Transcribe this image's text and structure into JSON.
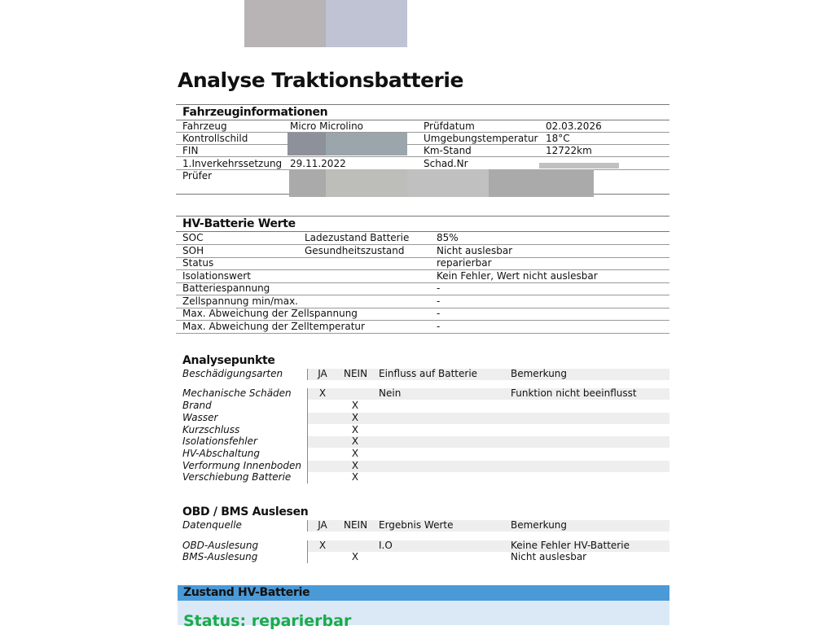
{
  "title": "Analyse Traktionsbatterie",
  "vehicle": {
    "heading": "Fahrzeuginformationen",
    "rows": [
      {
        "l1": "Fahrzeug",
        "v1": "Micro Microlino",
        "l2": "Prüfdatum",
        "v2": "02.03.2026"
      },
      {
        "l1": "Kontrollschild",
        "v1": "",
        "l2": "Umgebungstemperatur",
        "v2": "18°C"
      },
      {
        "l1": "FIN",
        "v1": "",
        "l2": "Km-Stand",
        "v2": "12722km"
      },
      {
        "l1": "1.Inverkehrssetzung",
        "v1": "29.11.2022",
        "l2": "Schad.Nr",
        "v2": ""
      },
      {
        "l1": "Prüfer",
        "v1": "",
        "l2": "",
        "v2": ""
      }
    ]
  },
  "battery": {
    "heading": "HV-Batterie Werte",
    "rows": [
      {
        "k": "SOC",
        "d": "Ladezustand Batterie",
        "v": "85%"
      },
      {
        "k": "SOH",
        "d": "Gesundheitszustand",
        "v": "Nicht auslesbar"
      },
      {
        "k": "Status",
        "d": "",
        "v": "reparierbar"
      },
      {
        "k": "Isolationswert",
        "d": "",
        "v": "Kein Fehler, Wert nicht auslesbar"
      },
      {
        "k": "Batteriespannung",
        "d": "",
        "v": "-"
      },
      {
        "k": "Zellspannung min/max.",
        "d": "",
        "v": "-"
      },
      {
        "k": "Max. Abweichung der Zellspannung",
        "d": "",
        "v": "-"
      },
      {
        "k": "Max. Abweichung der Zelltemperatur",
        "d": "",
        "v": "-"
      }
    ]
  },
  "analysis": {
    "heading": "Analysepunkte",
    "header": {
      "name": "Beschädigungsarten",
      "ja": "JA",
      "nein": "NEIN",
      "c3": "Einfluss auf Batterie",
      "c4": "Bemerkung"
    },
    "rows": [
      {
        "name": "Mechanische Schäden",
        "ja": "X",
        "nein": "",
        "c3": "Nein",
        "c4": "Funktion nicht beeinflusst"
      },
      {
        "name": "Brand",
        "ja": "",
        "nein": "X",
        "c3": "",
        "c4": ""
      },
      {
        "name": "Wasser",
        "ja": "",
        "nein": "X",
        "c3": "",
        "c4": ""
      },
      {
        "name": "Kurzschluss",
        "ja": "",
        "nein": "X",
        "c3": "",
        "c4": ""
      },
      {
        "name": "Isolationsfehler",
        "ja": "",
        "nein": "X",
        "c3": "",
        "c4": ""
      },
      {
        "name": "HV-Abschaltung",
        "ja": "",
        "nein": "X",
        "c3": "",
        "c4": ""
      },
      {
        "name": "Verformung Innenboden",
        "ja": "",
        "nein": "X",
        "c3": "",
        "c4": ""
      },
      {
        "name": "Verschiebung Batterie",
        "ja": "",
        "nein": "X",
        "c3": "",
        "c4": ""
      }
    ]
  },
  "obd": {
    "heading": "OBD / BMS Auslesen",
    "header": {
      "name": "Datenquelle",
      "ja": "JA",
      "nein": "NEIN",
      "c3": "Ergebnis Werte",
      "c4": "Bemerkung"
    },
    "rows": [
      {
        "name": "OBD-Auslesung",
        "ja": "X",
        "nein": "",
        "c3": "I.O",
        "c4": "Keine Fehler HV-Batterie"
      },
      {
        "name": "BMS-Auslesung",
        "ja": "",
        "nein": "X",
        "c3": "",
        "c4": "Nicht auslesbar"
      }
    ]
  },
  "condition": {
    "heading": "Zustand HV-Batterie",
    "status": "Status: reparierbar"
  },
  "colors": {
    "accent": "#4a9ad8",
    "panel": "#dbe9f7",
    "status": "#1aab4a"
  }
}
